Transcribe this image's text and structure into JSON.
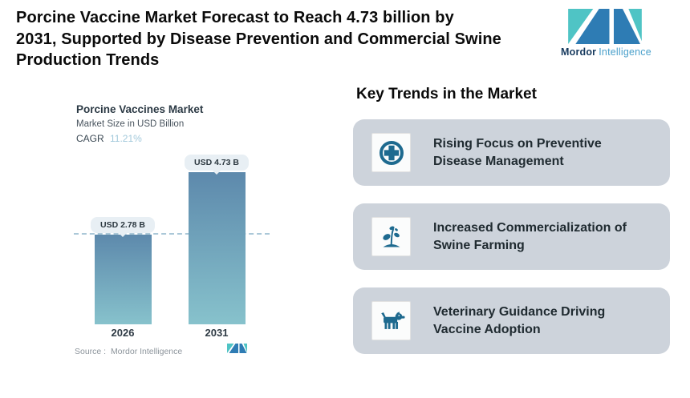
{
  "header": {
    "title_lines": [
      "Porcine Vaccine Market Forecast to Reach 4.73 billion by",
      "2031, Supported by Disease Prevention and Commercial Swine",
      "Production Trends"
    ],
    "logo": {
      "brand_bold": "Mordor",
      "brand_light": "Intelligence"
    }
  },
  "chart": {
    "title": "Porcine Vaccines Market",
    "subtitle": "Market Size in USD Billion",
    "cagr_label": "CAGR",
    "cagr_value": "11.21%",
    "source": "Source :  Mordor Intelligence",
    "bars": [
      {
        "year": "2026",
        "label": "USD 2.78 B",
        "value": 2.78
      },
      {
        "year": "2031",
        "label": "USD 4.73 B",
        "value": 4.73
      }
    ]
  },
  "chart_data": {
    "type": "bar",
    "categories": [
      "2026",
      "2031"
    ],
    "values": [
      2.78,
      4.73
    ],
    "data_labels": [
      "USD 2.78 B",
      "USD 4.73 B"
    ],
    "title": "Porcine Vaccines Market",
    "ylabel": "Market Size in USD Billion",
    "cagr": "11.21%",
    "ylim": [
      0,
      5
    ],
    "grid": false,
    "legend": "none",
    "reference_line": 2.78,
    "bar_gradient_top": "#5d89ac",
    "bar_gradient_bottom": "#87c2cc"
  },
  "trends": {
    "heading": "Key Trends in the Market",
    "cards": [
      {
        "icon": "medical-cross-icon",
        "lines": [
          "Rising Focus on Preventive",
          "Disease Management"
        ]
      },
      {
        "icon": "sapling-icon",
        "lines": [
          "Increased Commercialization of",
          "Swine Farming"
        ]
      },
      {
        "icon": "dog-icon",
        "lines": [
          "Veterinary Guidance Driving",
          "Vaccine Adoption"
        ]
      }
    ]
  },
  "colors": {
    "card_bg": "#cdd3db",
    "icon_teal": "#1e6a8f",
    "pill_bg": "#e8eff4",
    "dashed_line": "#abc8d8",
    "logo_teal": "#4fc4c5",
    "logo_blue": "#2e7cb4",
    "cagr_value": "#a2c9db"
  }
}
